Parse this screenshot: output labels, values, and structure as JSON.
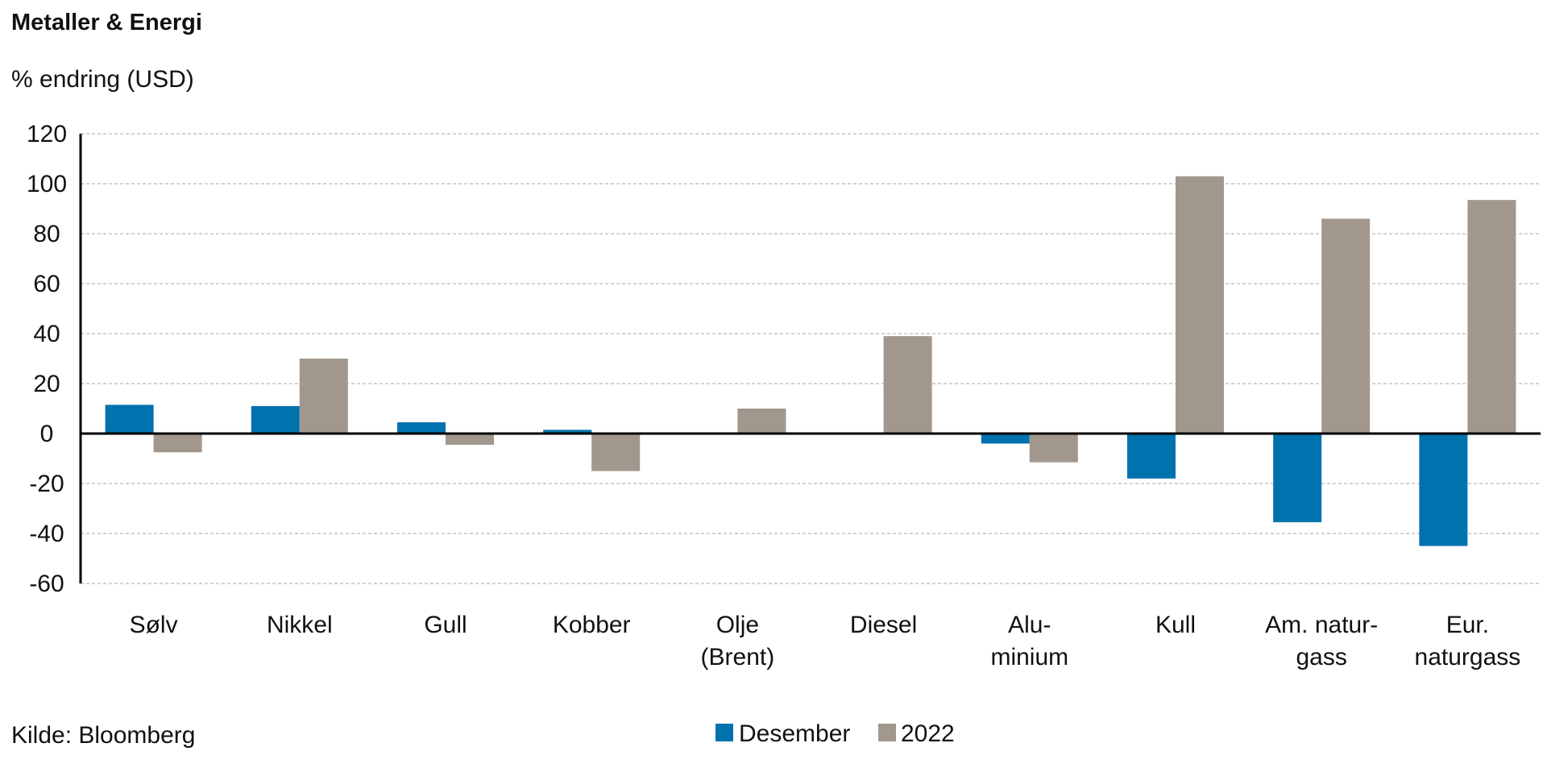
{
  "chart_data": {
    "type": "bar",
    "title": "Metaller & Energi",
    "ylabel": "% endring (USD)",
    "source": "Kilde: Bloomberg",
    "categories": [
      [
        "Sølv"
      ],
      [
        "Nikkel"
      ],
      [
        "Gull"
      ],
      [
        "Kobber"
      ],
      [
        "Olje",
        "(Brent)"
      ],
      [
        "Diesel"
      ],
      [
        "Alu-",
        "minium"
      ],
      [
        "Kull"
      ],
      [
        "Am. natur-",
        "gass"
      ],
      [
        "Eur.",
        "naturgass"
      ]
    ],
    "series": [
      {
        "name": "Desember",
        "color": "#0072AE",
        "values": [
          11.5,
          11,
          4.5,
          1.5,
          0,
          0,
          -4,
          -18,
          -35.5,
          -45
        ]
      },
      {
        "name": "2022",
        "color": "#A2978C",
        "values": [
          -7.5,
          30,
          -4.5,
          -15,
          10,
          39,
          -11.5,
          103,
          86,
          93.5
        ]
      }
    ],
    "yticks": [
      120,
      100,
      80,
      60,
      40,
      20,
      0,
      -20,
      -40,
      -60
    ],
    "ylim": [
      -60,
      120
    ],
    "grid": true,
    "legend": "bottom-center"
  }
}
